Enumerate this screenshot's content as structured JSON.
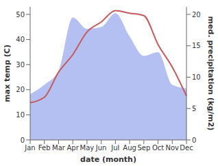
{
  "chart_data": {
    "type": "line",
    "x_label": "date (month)",
    "y_label": "max temp (C)",
    "y2_label": "med. precipitation (kg/m2)",
    "categories": [
      "Jan",
      "Feb",
      "Mar",
      "Apr",
      "May",
      "Jun",
      "Jul",
      "Aug",
      "Sep",
      "Oct",
      "Nov",
      "Dec"
    ],
    "series": [
      {
        "name": "med. precipitation",
        "type": "area",
        "axis": "y2",
        "color": "#b1bdf1",
        "values": [
          7.3,
          8.8,
          11,
          19.5,
          17.7,
          18,
          20.2,
          16.5,
          13.4,
          14,
          8.8,
          8.2
        ]
      },
      {
        "name": "max temp",
        "type": "line",
        "color": "#c8595a",
        "values": [
          14.8,
          17,
          27,
          34,
          43,
          47,
          51.5,
          50.5,
          49.5,
          38,
          29,
          17.5
        ]
      }
    ],
    "ylim": [
      0,
      53
    ],
    "yticks": [
      0,
      10,
      20,
      30,
      40,
      50
    ],
    "y2lim": [
      0,
      21.2
    ],
    "y2ticks": [
      0,
      5,
      10,
      15,
      20
    ]
  }
}
